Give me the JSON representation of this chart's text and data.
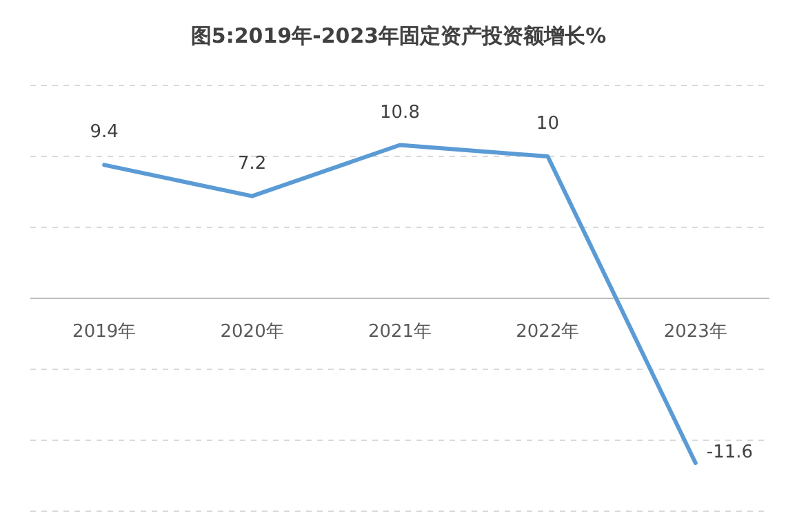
{
  "chart_data": {
    "type": "line",
    "title": "图5:2019年-2023年固定资产投资额增长%",
    "categories": [
      "2019年",
      "2020年",
      "2021年",
      "2022年",
      "2023年"
    ],
    "values": [
      9.4,
      7.2,
      10.8,
      10,
      -11.6
    ],
    "color": "#5b9bd5",
    "ylim": [
      -15,
      15
    ],
    "yticks": [
      {
        "value": -15,
        "label": null
      },
      {
        "value": -10,
        "label": null
      },
      {
        "value": -5,
        "label": null
      },
      {
        "value": 0,
        "label": null
      },
      {
        "value": 5,
        "label": null
      },
      {
        "value": 10,
        "label": null
      },
      {
        "value": 15,
        "label": null
      }
    ],
    "tick_labels": "x",
    "grid": "y",
    "data_labels": true,
    "marker": "none",
    "line_style": "solid"
  }
}
